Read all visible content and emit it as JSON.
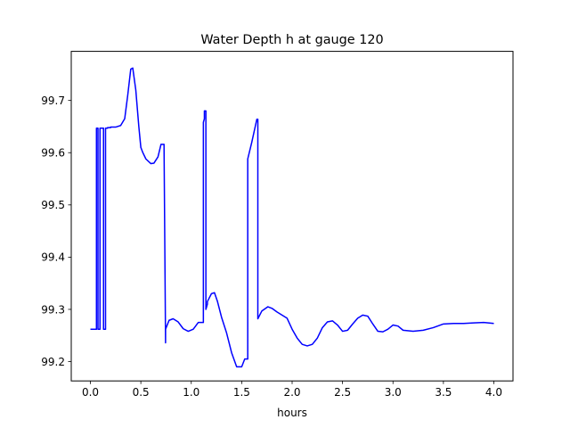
{
  "chart_data": {
    "type": "line",
    "title": "Water Depth h at gauge 120",
    "xlabel": "hours",
    "ylabel": "",
    "xlim": [
      -0.19,
      4.19
    ],
    "ylim": [
      99.163,
      99.794
    ],
    "xticks": [
      0.0,
      0.5,
      1.0,
      1.5,
      2.0,
      2.5,
      3.0,
      3.5,
      4.0
    ],
    "xtick_labels": [
      "0.0",
      "0.5",
      "1.0",
      "1.5",
      "2.0",
      "2.5",
      "3.0",
      "3.5",
      "4.0"
    ],
    "yticks": [
      99.2,
      99.3,
      99.4,
      99.5,
      99.6,
      99.7
    ],
    "ytick_labels": [
      "99.2",
      "99.3",
      "99.4",
      "99.5",
      "99.6",
      "99.7"
    ],
    "grid": false,
    "series": [
      {
        "color": "#0000ff",
        "x": [
          0.0,
          0.06,
          0.06,
          0.075,
          0.075,
          0.095,
          0.095,
          0.13,
          0.13,
          0.15,
          0.15,
          0.17,
          0.17,
          0.2,
          0.2,
          0.25,
          0.3,
          0.34,
          0.37,
          0.4,
          0.42,
          0.45,
          0.48,
          0.5,
          0.52,
          0.55,
          0.6,
          0.63,
          0.67,
          0.7,
          0.73,
          0.745,
          0.745,
          0.78,
          0.82,
          0.87,
          0.92,
          0.97,
          1.02,
          1.07,
          1.1,
          1.12,
          1.12,
          1.13,
          1.13,
          1.145,
          1.145,
          1.16,
          1.16,
          1.2,
          1.23,
          1.26,
          1.3,
          1.35,
          1.4,
          1.45,
          1.5,
          1.53,
          1.56,
          1.56,
          1.6,
          1.65,
          1.66,
          1.66,
          1.7,
          1.76,
          1.8,
          1.85,
          1.95,
          2.0,
          2.05,
          2.1,
          2.15,
          2.2,
          2.25,
          2.3,
          2.35,
          2.4,
          2.45,
          2.5,
          2.55,
          2.6,
          2.65,
          2.7,
          2.75,
          2.8,
          2.85,
          2.9,
          2.95,
          3.0,
          3.05,
          3.1,
          3.2,
          3.3,
          3.4,
          3.5,
          3.6,
          3.7,
          3.8,
          3.9,
          4.0
        ],
        "y": [
          99.262,
          99.262,
          99.647,
          99.647,
          99.262,
          99.262,
          99.647,
          99.647,
          99.262,
          99.262,
          99.647,
          99.647,
          99.648,
          99.648,
          99.649,
          99.649,
          99.652,
          99.665,
          99.71,
          99.76,
          99.762,
          99.72,
          99.65,
          99.61,
          99.6,
          99.588,
          99.579,
          99.58,
          99.592,
          99.616,
          99.616,
          99.236,
          99.262,
          99.279,
          99.282,
          99.276,
          99.263,
          99.258,
          99.262,
          99.275,
          99.275,
          99.275,
          99.658,
          99.665,
          99.68,
          99.68,
          99.3,
          99.31,
          99.315,
          99.33,
          99.332,
          99.315,
          99.285,
          99.255,
          99.217,
          99.19,
          99.19,
          99.205,
          99.205,
          99.588,
          99.62,
          99.664,
          99.664,
          99.282,
          99.297,
          99.305,
          99.302,
          99.295,
          99.283,
          99.262,
          99.245,
          99.233,
          99.23,
          99.233,
          99.245,
          99.265,
          99.276,
          99.278,
          99.27,
          99.258,
          99.26,
          99.272,
          99.283,
          99.289,
          99.287,
          99.272,
          99.258,
          99.257,
          99.262,
          99.27,
          99.268,
          99.26,
          99.258,
          99.26,
          99.265,
          99.272,
          99.273,
          99.273,
          99.274,
          99.275,
          99.273
        ]
      }
    ]
  }
}
